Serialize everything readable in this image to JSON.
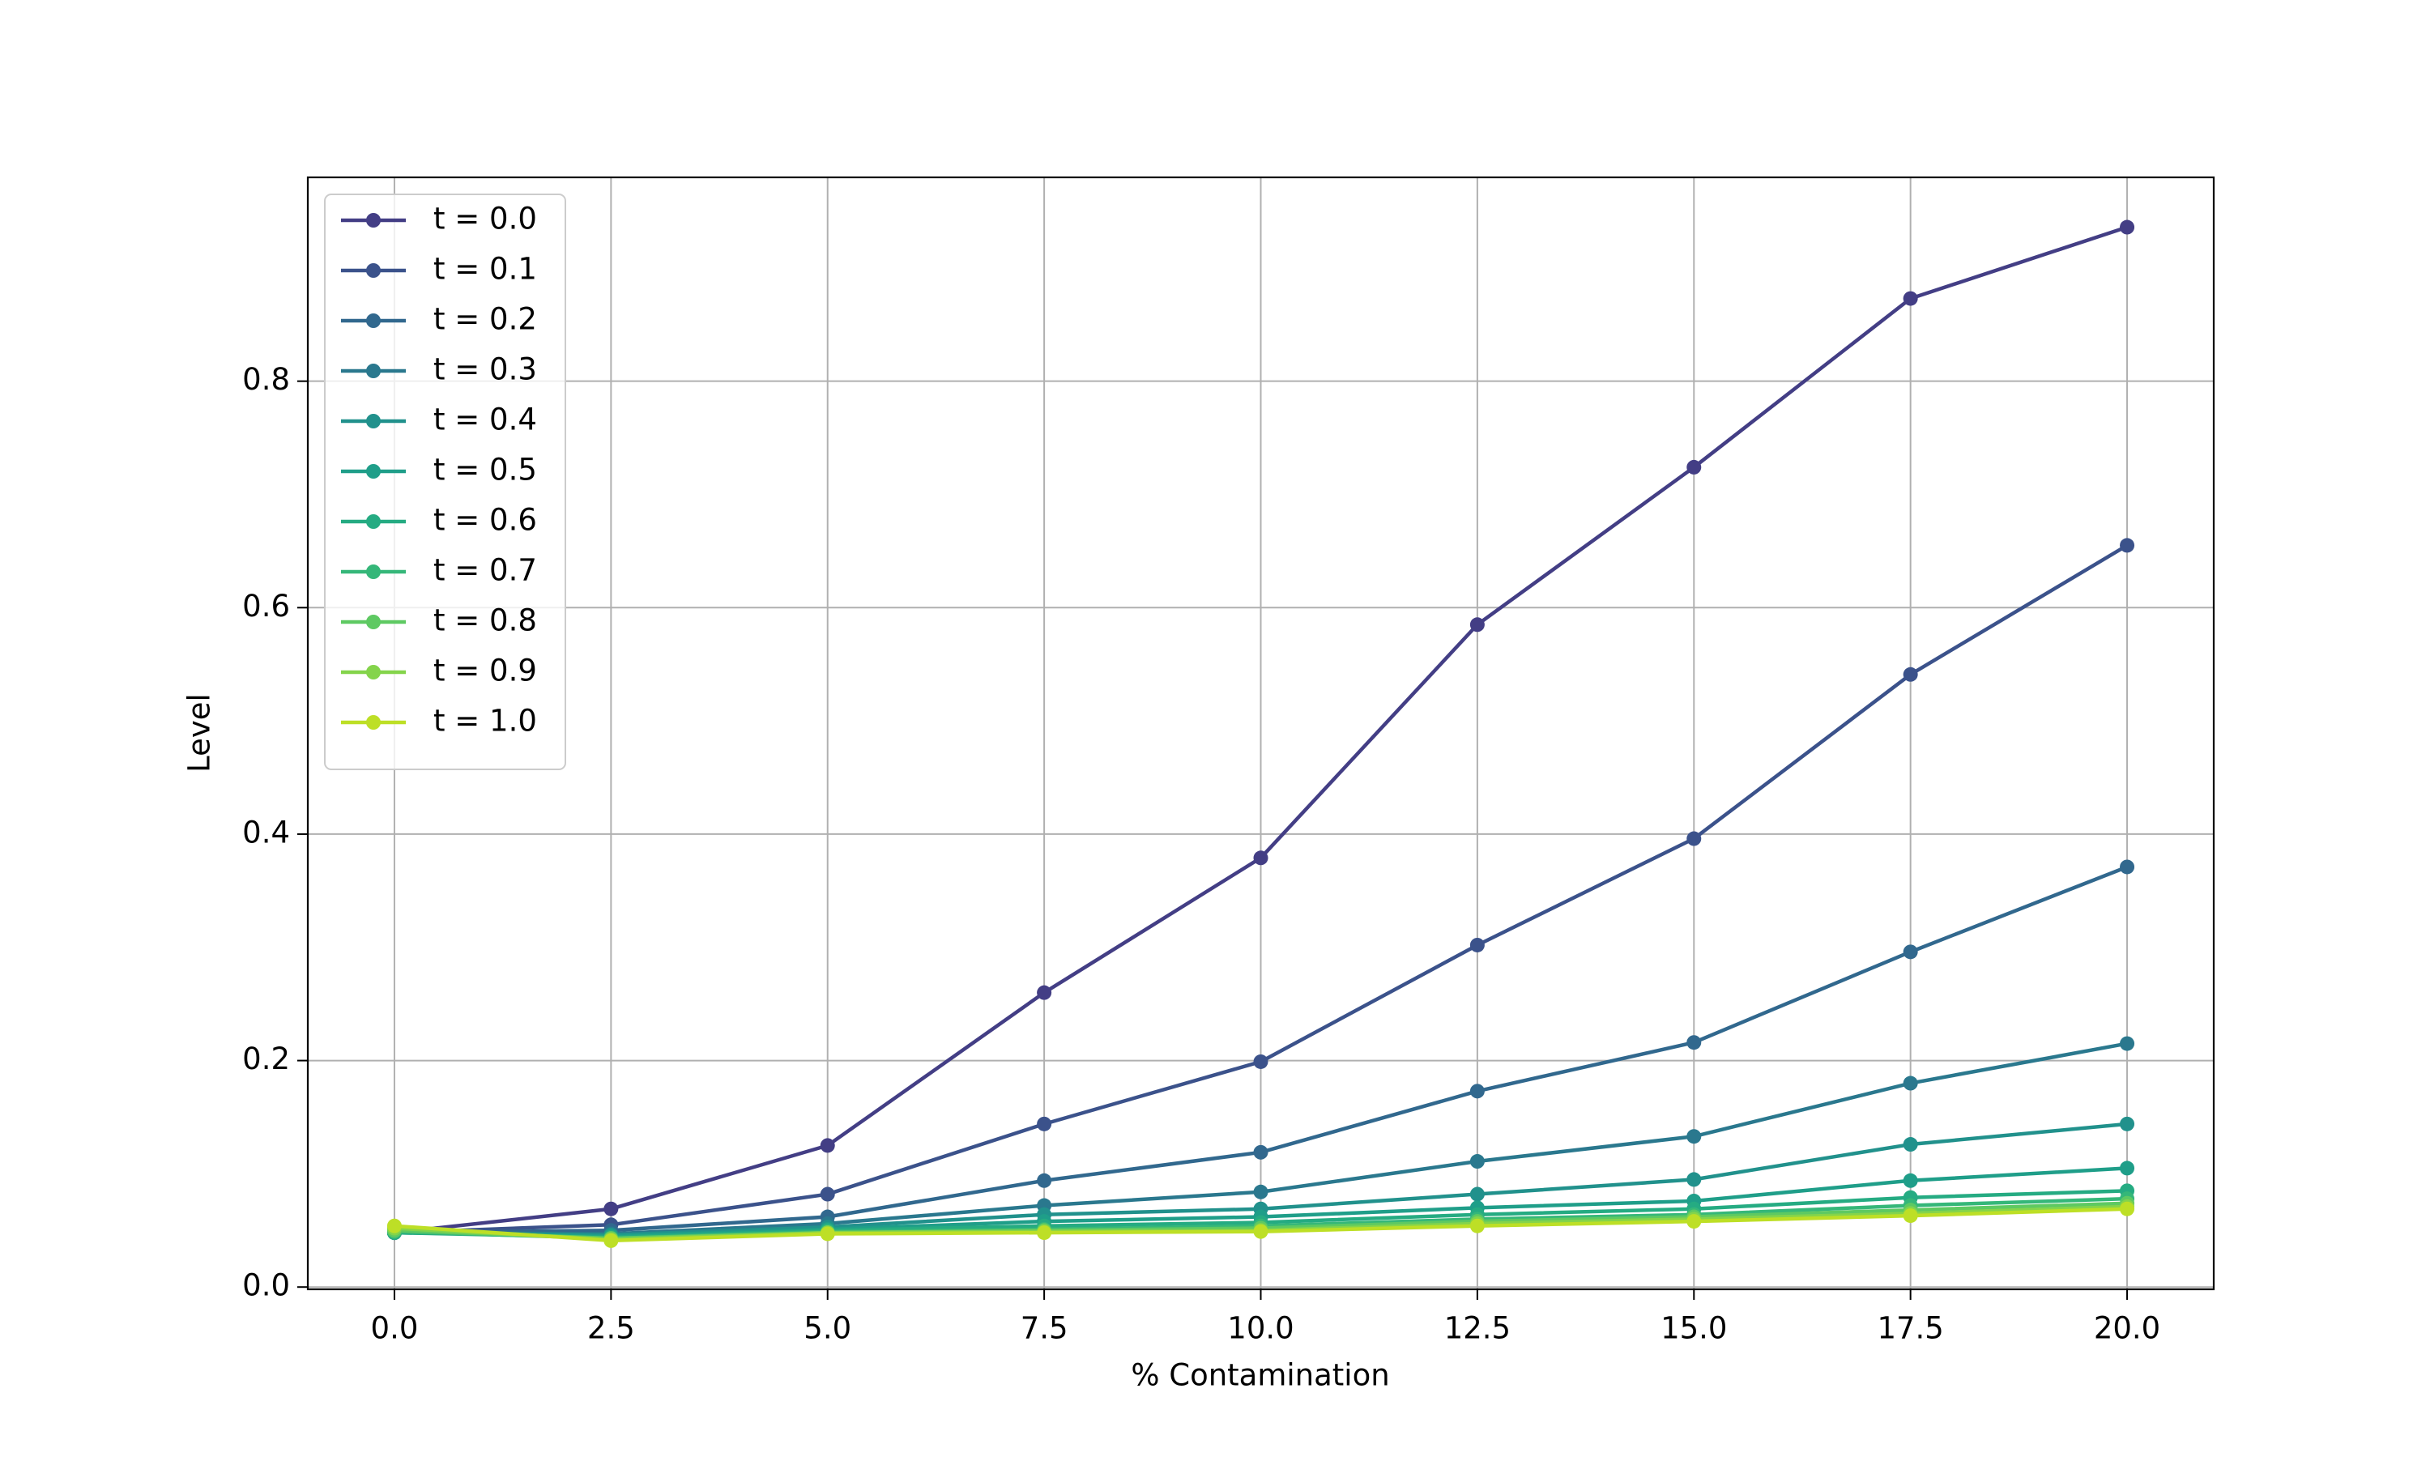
{
  "chart_data": {
    "type": "line",
    "x_label": "% Contamination",
    "y_label": "Level",
    "x": [
      0,
      2.5,
      5,
      7.5,
      10,
      12.5,
      15,
      17.5,
      20
    ],
    "xlim": [
      -1,
      21
    ],
    "ylim": [
      -0.002,
      0.98
    ],
    "xticks": [
      {
        "value": 0,
        "label": "0.0"
      },
      2.5,
      {
        "value": 5,
        "label": "5.0"
      },
      7.5,
      {
        "value": 10,
        "label": "10.0"
      },
      12.5,
      {
        "value": 15,
        "label": "15.0"
      },
      17.5,
      {
        "value": 20,
        "label": "20.0"
      }
    ],
    "yticks": [
      {
        "value": 0,
        "label": "0.0"
      },
      0.2,
      0.4,
      0.6,
      0.8
    ],
    "grid": true,
    "legend": "upper left",
    "series": [
      {
        "name": "t = 0.0",
        "color": "#433e85",
        "values": [
          0.048,
          0.069,
          0.125,
          0.26,
          0.379,
          0.585,
          0.724,
          0.873,
          0.936
        ]
      },
      {
        "name": "t = 0.1",
        "color": "#3b528b",
        "values": [
          0.048,
          0.055,
          0.082,
          0.144,
          0.199,
          0.302,
          0.396,
          0.541,
          0.655
        ]
      },
      {
        "name": "t = 0.2",
        "color": "#31688e",
        "values": [
          0.048,
          0.05,
          0.062,
          0.094,
          0.119,
          0.173,
          0.216,
          0.296,
          0.371
        ]
      },
      {
        "name": "t = 0.3",
        "color": "#2a788e",
        "values": [
          0.048,
          0.047,
          0.056,
          0.072,
          0.084,
          0.111,
          0.133,
          0.18,
          0.215
        ]
      },
      {
        "name": "t = 0.4",
        "color": "#21918c",
        "values": [
          0.048,
          0.046,
          0.053,
          0.064,
          0.069,
          0.082,
          0.095,
          0.126,
          0.144
        ]
      },
      {
        "name": "t = 0.5",
        "color": "#1f9e89",
        "values": [
          0.048,
          0.045,
          0.051,
          0.058,
          0.062,
          0.07,
          0.076,
          0.094,
          0.105
        ]
      },
      {
        "name": "t = 0.6",
        "color": "#25ab82",
        "values": [
          0.048,
          0.044,
          0.05,
          0.054,
          0.057,
          0.064,
          0.069,
          0.079,
          0.085
        ]
      },
      {
        "name": "t = 0.7",
        "color": "#35b779",
        "values": [
          0.049,
          0.043,
          0.049,
          0.051,
          0.054,
          0.06,
          0.064,
          0.072,
          0.078
        ]
      },
      {
        "name": "t = 0.8",
        "color": "#5ec962",
        "values": [
          0.05,
          0.043,
          0.048,
          0.05,
          0.052,
          0.058,
          0.062,
          0.068,
          0.074
        ]
      },
      {
        "name": "t = 0.9",
        "color": "#84d44b",
        "values": [
          0.052,
          0.042,
          0.048,
          0.049,
          0.05,
          0.056,
          0.06,
          0.065,
          0.071
        ]
      },
      {
        "name": "t = 1.0",
        "color": "#bddf26",
        "values": [
          0.054,
          0.041,
          0.047,
          0.048,
          0.049,
          0.054,
          0.058,
          0.063,
          0.069
        ]
      }
    ]
  }
}
